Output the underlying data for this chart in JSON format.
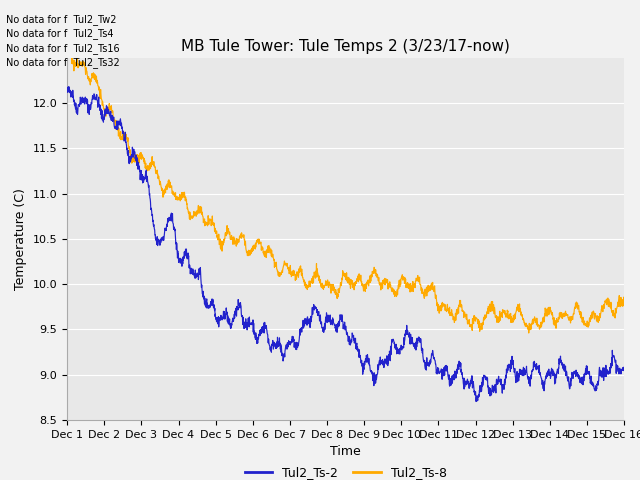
{
  "title": "MB Tule Tower: Tule Temps 2 (3/23/17-now)",
  "xlabel": "Time",
  "ylabel": "Temperature (C)",
  "ylim": [
    8.5,
    12.5
  ],
  "xlim": [
    0,
    15
  ],
  "x_tick_labels": [
    "Dec 1",
    "Dec 2",
    "Dec 3",
    "Dec 4",
    "Dec 5",
    "Dec 6",
    "Dec 7",
    "Dec 8",
    "Dec 9",
    "Dec 10",
    "Dec 11",
    "Dec 12",
    "Dec 13",
    "Dec 14",
    "Dec 15",
    "Dec 16"
  ],
  "color_ts2": "#2222cc",
  "color_ts8": "#ffaa00",
  "legend_labels": [
    "Tul2_Ts-2",
    "Tul2_Ts-8"
  ],
  "no_data_lines": [
    "No data for f  Tul2_Tw2",
    "No data for f  Tul2_Ts4",
    "No data for f  Tul2_Ts16",
    "No data for f  Tul2_Ts32"
  ],
  "background_color": "#e8e8e8",
  "grid_color": "#ffffff",
  "title_fontsize": 11,
  "axis_fontsize": 9,
  "tick_fontsize": 8
}
